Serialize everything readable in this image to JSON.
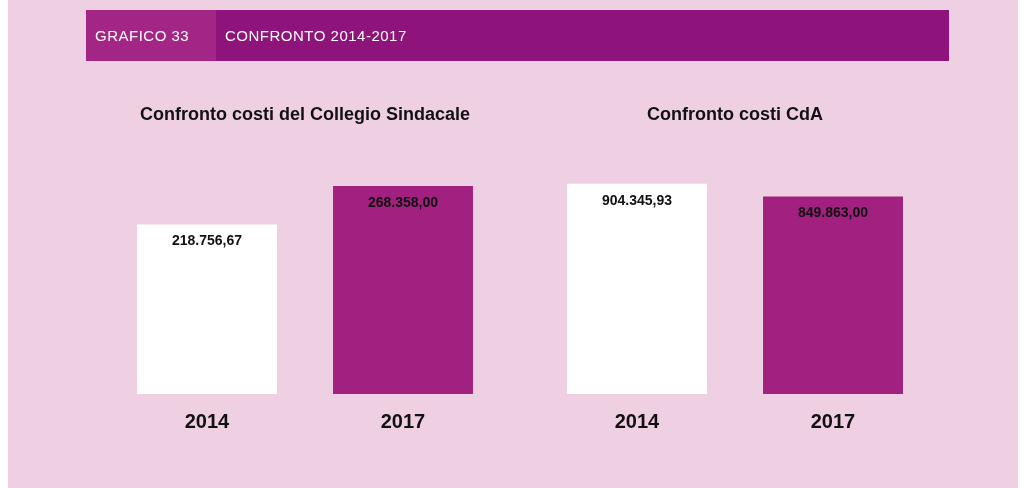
{
  "chart_data": [
    {
      "type": "bar",
      "title": "Confronto costi del Collegio Sindacale",
      "annotations": [
        "GRAFICO 33",
        "CONFRONTO 2014-2017"
      ],
      "categories": [
        "2014",
        "2017"
      ],
      "values": [
        218756.67,
        268358.0
      ],
      "colors": [
        "#ffffff",
        "#a2207f"
      ],
      "value_labels": [
        "218.756,67",
        "268.358,00"
      ],
      "tick_labels": "x",
      "grid": false,
      "legend": false
    },
    {
      "type": "bar",
      "title": "Confronto costi CdA",
      "categories": [
        "2014",
        "2017"
      ],
      "values": [
        904345.93,
        849863.0
      ],
      "colors": [
        "#ffffff",
        "#a2207f"
      ],
      "value_labels": [
        "904.345,93",
        "849.863,00"
      ],
      "tick_labels": "x",
      "grid": false,
      "legend": false
    }
  ]
}
